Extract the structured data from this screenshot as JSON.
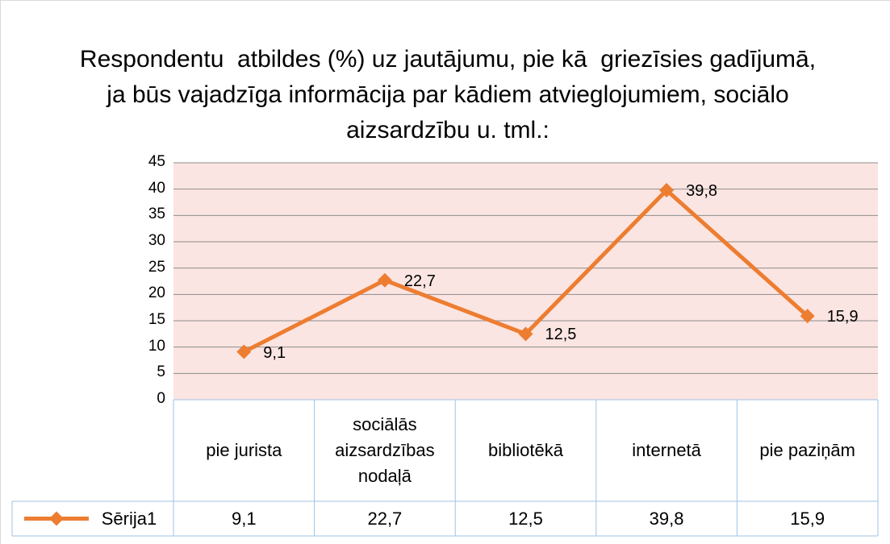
{
  "chart_data": {
    "type": "line",
    "title": "Respondentu  atbildes (%) uz jautājumu, pie kā  griezīsies gadījumā, ja būs vajadzīga informācija par kādiem atvieglojumiem, sociālo aizsardzību u. tml.:",
    "categories": [
      "pie jurista",
      "sociālās aizsardzības nodaļā",
      "bibliotēkā",
      "internetā",
      "pie paziņām"
    ],
    "series": [
      {
        "name": "Sērija1",
        "color": "#ed7d31",
        "values": [
          9.1,
          22.7,
          12.5,
          39.8,
          15.9
        ],
        "value_labels": [
          "9,1",
          "22,7",
          "12,5",
          "39,8",
          "15,9"
        ]
      }
    ],
    "ylim": [
      0,
      45
    ],
    "yticks": [
      0,
      5,
      10,
      15,
      20,
      25,
      30,
      35,
      40,
      45
    ],
    "grid": true,
    "data_table": true
  }
}
